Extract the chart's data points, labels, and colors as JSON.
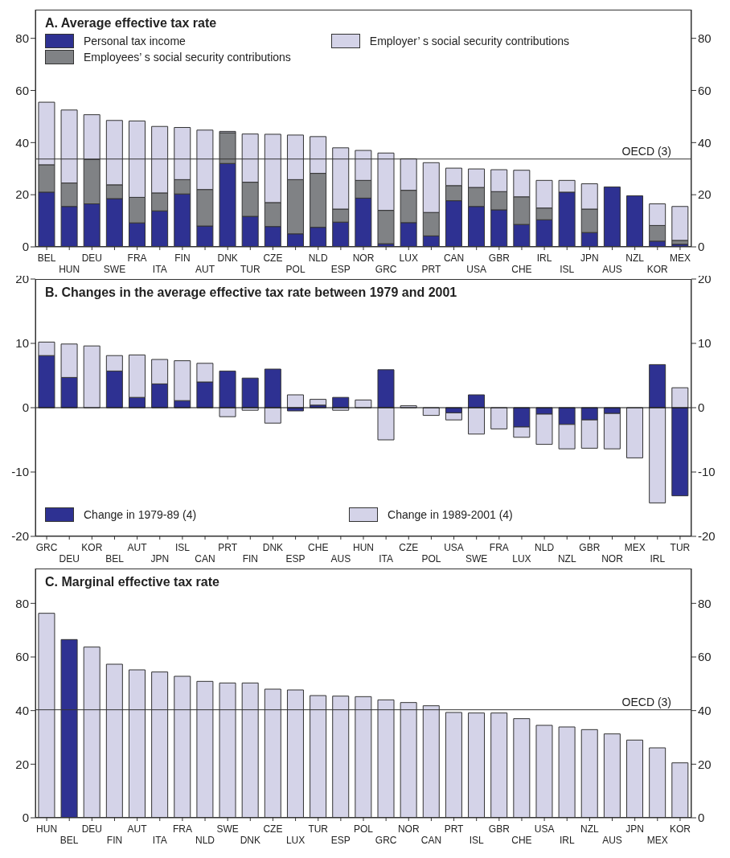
{
  "chart_data": [
    {
      "type": "bar",
      "title": "A.  Average effective tax rate",
      "stacked": true,
      "legend": "top",
      "categories": [
        "BEL",
        "HUN",
        "DEU",
        "SWE",
        "FRA",
        "ITA",
        "FIN",
        "AUT",
        "DNK",
        "TUR",
        "CZE",
        "POL",
        "NLD",
        "ESP",
        "NOR",
        "GRC",
        "LUX",
        "PRT",
        "CAN",
        "USA",
        "GBR",
        "CHE",
        "IRL",
        "ISL",
        "JPN",
        "AUS",
        "NZL",
        "KOR",
        "MEX"
      ],
      "series": [
        {
          "name": "Personal tax income",
          "color": "#2e3192",
          "values": [
            21,
            15.5,
            16.5,
            18.5,
            9.2,
            13.8,
            20.3,
            8,
            32,
            11.7,
            7.8,
            5,
            7.5,
            9.5,
            18.7,
            1.2,
            9.3,
            4.2,
            17.7,
            15.5,
            14.2,
            8.6,
            10.4,
            21,
            5.5,
            23,
            19.6,
            2.2,
            1
          ]
        },
        {
          "name": "Employees’ s social security contributions",
          "color": "#808285",
          "values": [
            10.5,
            9,
            17,
            5.3,
            9.8,
            6.9,
            5.5,
            14,
            11.8,
            13.1,
            9.2,
            20.8,
            20.7,
            5,
            6.8,
            12.8,
            12.4,
            9,
            5.8,
            7.3,
            7,
            10.6,
            4.5,
            0,
            9,
            0,
            0,
            6,
            1.5
          ]
        },
        {
          "name": "Employer’ s social security contributions",
          "color": "#d4d3e8",
          "values": [
            24,
            28,
            17.2,
            24.7,
            29.3,
            25.5,
            20,
            22.8,
            0.5,
            18.5,
            26.2,
            17.1,
            14.1,
            23.5,
            11.5,
            22,
            12.1,
            19.1,
            6.7,
            7.1,
            8.4,
            10.2,
            10.6,
            4.5,
            9.7,
            0,
            0,
            8.3,
            13
          ]
        }
      ],
      "ylim": [
        0,
        91
      ],
      "yticks": [
        0,
        20,
        40,
        60,
        80
      ],
      "y2lim": [
        0,
        91
      ],
      "y2ticks": [
        0,
        20,
        40,
        60,
        80
      ],
      "ref_lines": [
        {
          "axis": "y",
          "value": 33.7,
          "label": "OECD (3)"
        }
      ]
    },
    {
      "type": "bar",
      "title": "B. Changes in the average effective tax rate between 1979 and 2001",
      "stacked": true,
      "legend": "bottom",
      "categories": [
        "GRC",
        "DEU",
        "KOR",
        "BEL",
        "AUT",
        "JPN",
        "ISL",
        "CAN",
        "PRT",
        "FIN",
        "DNK",
        "ESP",
        "CHE",
        "AUS",
        "HUN",
        "ITA",
        "CZE",
        "POL",
        "USA",
        "SWE",
        "FRA",
        "LUX",
        "NLD",
        "NZL",
        "GBR",
        "NOR",
        "MEX",
        "IRL",
        "TUR"
      ],
      "series": [
        {
          "name": "Change in 1979-89 (4)",
          "color": "#2e3192",
          "values": [
            8.1,
            4.7,
            0,
            5.7,
            1.6,
            3.7,
            1.1,
            4,
            5.7,
            4.6,
            6,
            -0.5,
            0.4,
            1.6,
            0,
            5.9,
            0,
            0,
            -0.8,
            2,
            0,
            -3,
            -1,
            -2.6,
            -1.9,
            -0.9,
            0,
            6.7,
            -13.7
          ]
        },
        {
          "name": "Change in 1989-2001 (4)",
          "color": "#d4d3e8",
          "values": [
            2.1,
            5.2,
            9.6,
            2.4,
            6.6,
            3.8,
            6.2,
            2.9,
            -1.4,
            -0.4,
            -2.4,
            2,
            0.9,
            -0.4,
            1.2,
            -5,
            0.3,
            -1.2,
            -1.1,
            -4.1,
            -3.3,
            -1.6,
            -4.7,
            -3.8,
            -4.4,
            -5.5,
            -7.8,
            -14.8,
            3.1
          ]
        }
      ],
      "ylim": [
        -20,
        20
      ],
      "yticks": [
        -20,
        -10,
        0,
        10,
        20
      ],
      "y2lim": [
        -20,
        20
      ],
      "y2ticks": [
        -20,
        -10,
        0,
        10,
        20
      ]
    },
    {
      "type": "bar",
      "title": "C. Marginal effective tax rate",
      "categories": [
        "HUN",
        "BEL",
        "DEU",
        "FIN",
        "AUT",
        "ITA",
        "FRA",
        "NLD",
        "SWE",
        "DNK",
        "CZE",
        "LUX",
        "TUR",
        "ESP",
        "POL",
        "GRC",
        "NOR",
        "CAN",
        "PRT",
        "ISL",
        "GBR",
        "CHE",
        "USA",
        "IRL",
        "NZL",
        "AUS",
        "JPN",
        "MEX",
        "KOR"
      ],
      "values": [
        76.3,
        66.5,
        63.7,
        57.3,
        55.2,
        54.4,
        52.8,
        50.9,
        50.3,
        50.3,
        48,
        47.7,
        45.6,
        45.4,
        45.2,
        44,
        43,
        41.8,
        39.3,
        39.1,
        39.1,
        37,
        34.5,
        33.9,
        32.9,
        31.3,
        29,
        26.1,
        20.5
      ],
      "colors": [
        "#d4d3e8",
        "#2e3192",
        "#d4d3e8",
        "#d4d3e8",
        "#d4d3e8",
        "#d4d3e8",
        "#d4d3e8",
        "#d4d3e8",
        "#d4d3e8",
        "#d4d3e8",
        "#d4d3e8",
        "#d4d3e8",
        "#d4d3e8",
        "#d4d3e8",
        "#d4d3e8",
        "#d4d3e8",
        "#d4d3e8",
        "#d4d3e8",
        "#d4d3e8",
        "#d4d3e8",
        "#d4d3e8",
        "#d4d3e8",
        "#d4d3e8",
        "#d4d3e8",
        "#d4d3e8",
        "#d4d3e8",
        "#d4d3e8",
        "#d4d3e8",
        "#d4d3e8"
      ],
      "ylim": [
        0,
        93
      ],
      "yticks": [
        0,
        20,
        40,
        60,
        80
      ],
      "y2lim": [
        0,
        93
      ],
      "y2ticks": [
        0,
        20,
        40,
        60,
        80
      ],
      "ref_lines": [
        {
          "axis": "y",
          "value": 40.3,
          "label": "OECD (3)"
        }
      ]
    }
  ]
}
